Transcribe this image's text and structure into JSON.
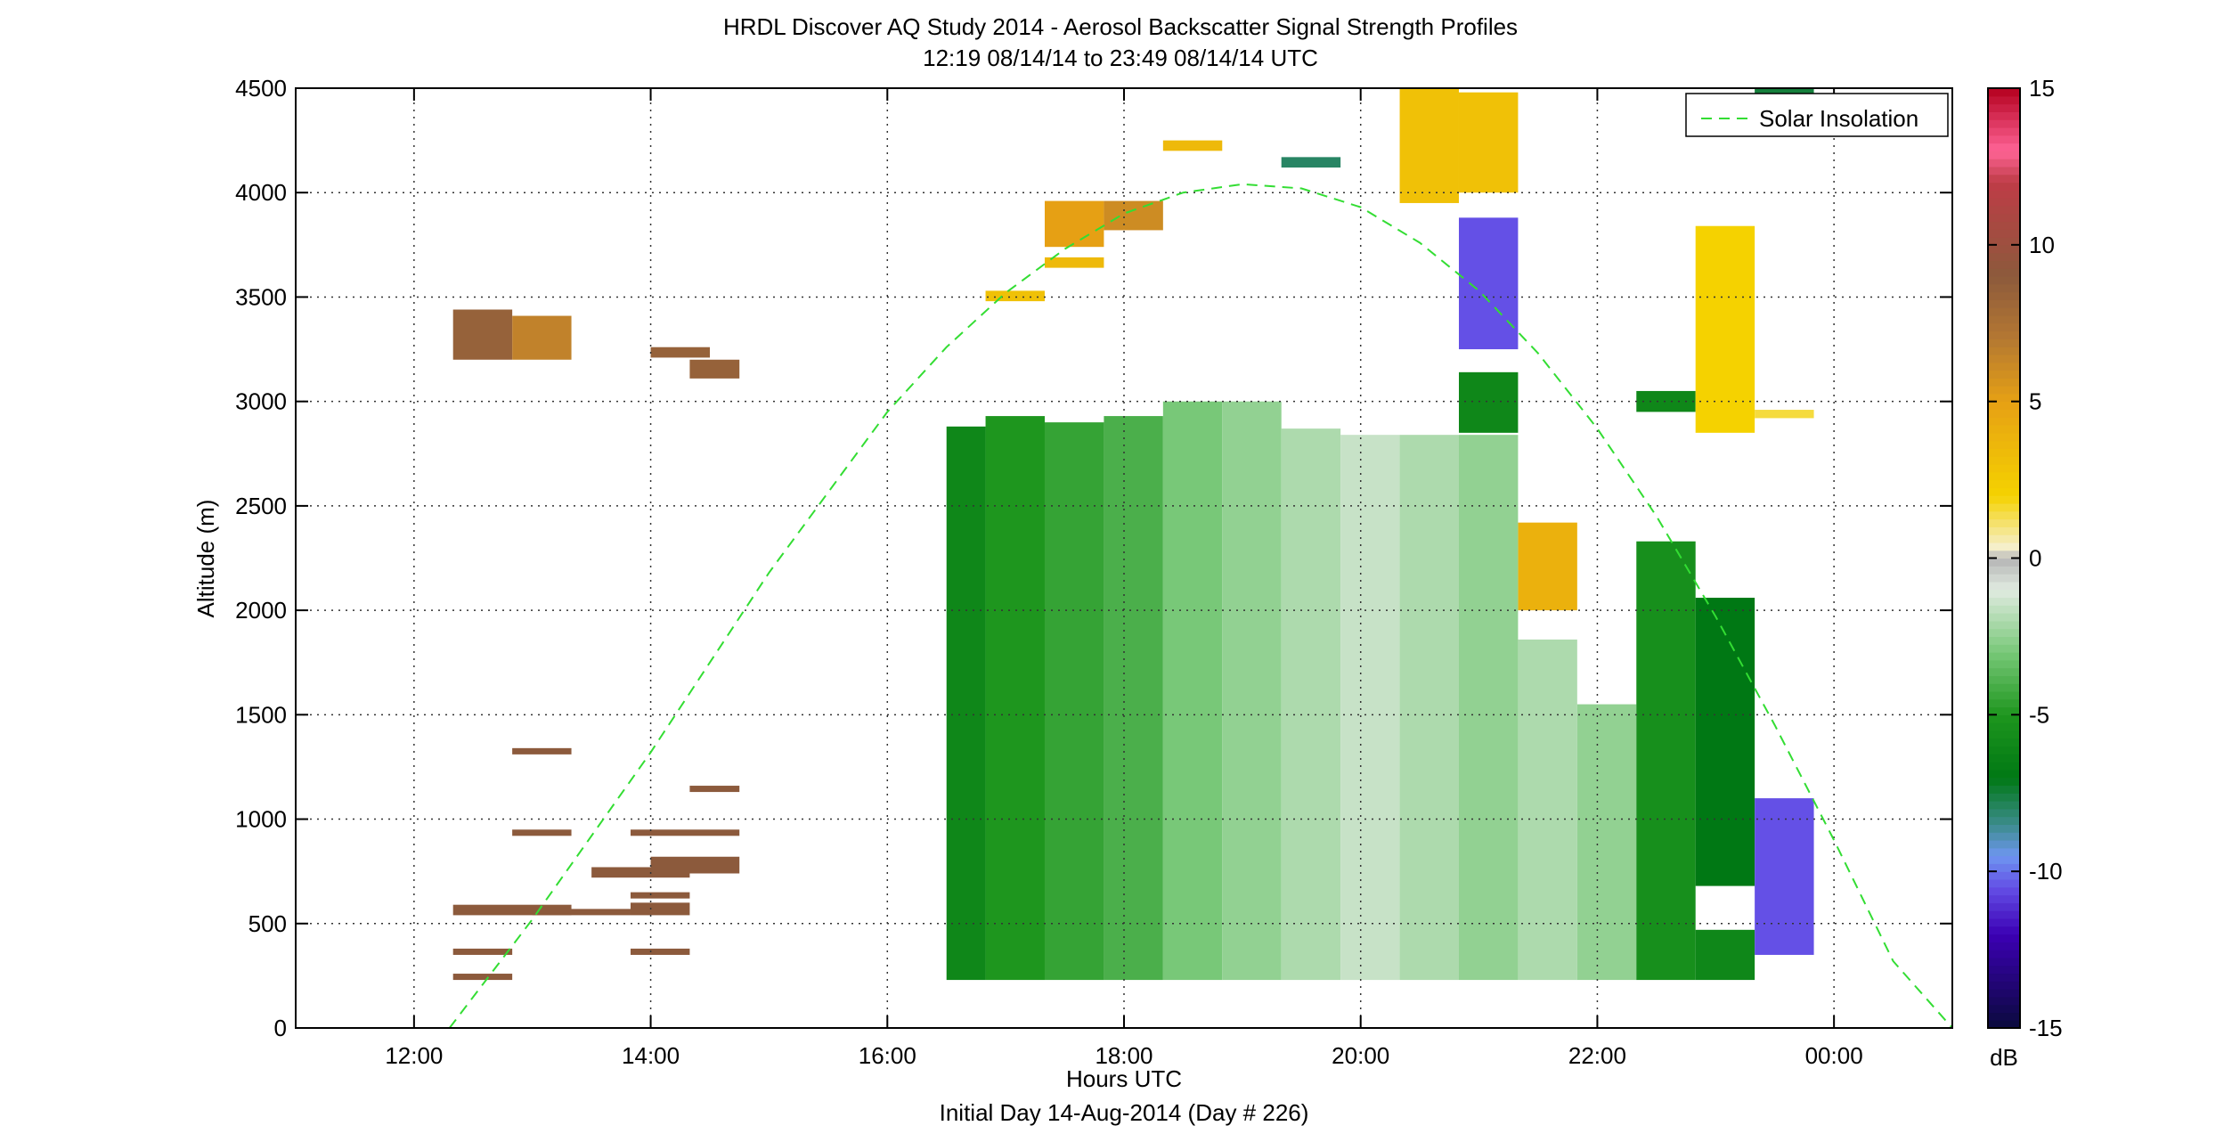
{
  "chart_data": {
    "type": "heatmap",
    "title": "HRDL Discover AQ Study 2014 - Aerosol Backscatter Signal Strength Profiles",
    "subtitle": "12:19 08/14/14 to 23:49 08/14/14  UTC",
    "xlabel": "Hours UTC",
    "xlabel2": "Initial Day 14-Aug-2014 (Day # 226)",
    "ylabel": "Altitude (m)",
    "xlim": [
      11.0,
      25.0
    ],
    "ylim": [
      0,
      4500
    ],
    "x_ticks": [
      {
        "value": 12,
        "label": "12:00"
      },
      {
        "value": 14,
        "label": "14:00"
      },
      {
        "value": 16,
        "label": "16:00"
      },
      {
        "value": 18,
        "label": "18:00"
      },
      {
        "value": 20,
        "label": "20:00"
      },
      {
        "value": 22,
        "label": "22:00"
      },
      {
        "value": 24,
        "label": "00:00"
      }
    ],
    "y_ticks": [
      {
        "value": 0,
        "label": "0"
      },
      {
        "value": 500,
        "label": "500"
      },
      {
        "value": 1000,
        "label": "1000"
      },
      {
        "value": 1500,
        "label": "1500"
      },
      {
        "value": 2000,
        "label": "2000"
      },
      {
        "value": 2500,
        "label": "2500"
      },
      {
        "value": 3000,
        "label": "3000"
      },
      {
        "value": 3500,
        "label": "3500"
      },
      {
        "value": 4000,
        "label": "4000"
      },
      {
        "value": 4500,
        "label": "4500"
      }
    ],
    "grid": true,
    "legend": {
      "position": "top-right",
      "entries": [
        {
          "label": "Solar Insolation",
          "style": "dashed",
          "color": "#33dd33"
        }
      ]
    },
    "colorbar": {
      "unit": "dB",
      "range": [
        -15,
        15
      ],
      "ticks": [
        {
          "value": 15,
          "label": "15"
        },
        {
          "value": 10,
          "label": "10"
        },
        {
          "value": 5,
          "label": "5"
        },
        {
          "value": 0,
          "label": "0"
        },
        {
          "value": -5,
          "label": "-5"
        },
        {
          "value": -10,
          "label": "-10"
        },
        {
          "value": -15,
          "label": "-15"
        }
      ]
    },
    "solar_insolation_curve": {
      "x": [
        12.3,
        13.0,
        14.0,
        15.0,
        16.0,
        16.5,
        17.0,
        17.5,
        18.0,
        18.5,
        19.0,
        19.5,
        20.0,
        20.5,
        21.0,
        21.5,
        22.0,
        22.5,
        23.0,
        23.5,
        24.0,
        24.5,
        25.0
      ],
      "y": [
        0,
        520,
        1320,
        2180,
        2950,
        3260,
        3520,
        3730,
        3900,
        4000,
        4040,
        4020,
        3930,
        3760,
        3530,
        3230,
        2870,
        2450,
        1970,
        1450,
        900,
        320,
        -280
      ]
    },
    "cells": [
      {
        "x0": 12.33,
        "x1": 12.83,
        "y0": 3200,
        "y1": 3440,
        "v": 8.5
      },
      {
        "x0": 12.83,
        "x1": 13.33,
        "y0": 3200,
        "y1": 3410,
        "v": 6.5
      },
      {
        "x0": 14.0,
        "x1": 14.5,
        "y0": 3210,
        "y1": 3260,
        "v": 8.5
      },
      {
        "x0": 14.33,
        "x1": 14.75,
        "y0": 3110,
        "y1": 3200,
        "v": 8.5
      },
      {
        "x0": 12.33,
        "x1": 13.33,
        "y0": 540,
        "y1": 590,
        "v": 9.0
      },
      {
        "x0": 13.0,
        "x1": 13.83,
        "y0": 540,
        "y1": 570,
        "v": 9.0
      },
      {
        "x0": 12.33,
        "x1": 12.83,
        "y0": 350,
        "y1": 380,
        "v": 9.0
      },
      {
        "x0": 12.33,
        "x1": 12.83,
        "y0": 230,
        "y1": 260,
        "v": 9.0
      },
      {
        "x0": 12.83,
        "x1": 13.33,
        "y0": 1310,
        "y1": 1340,
        "v": 9.0
      },
      {
        "x0": 12.83,
        "x1": 13.33,
        "y0": 920,
        "y1": 950,
        "v": 9.0
      },
      {
        "x0": 13.5,
        "x1": 14.33,
        "y0": 720,
        "y1": 770,
        "v": 9.0
      },
      {
        "x0": 14.0,
        "x1": 14.75,
        "y0": 740,
        "y1": 820,
        "v": 9.0
      },
      {
        "x0": 13.83,
        "x1": 14.33,
        "y0": 540,
        "y1": 600,
        "v": 9.0
      },
      {
        "x0": 13.83,
        "x1": 14.33,
        "y0": 620,
        "y1": 650,
        "v": 9.0
      },
      {
        "x0": 13.83,
        "x1": 14.75,
        "y0": 920,
        "y1": 950,
        "v": 9.0
      },
      {
        "x0": 13.83,
        "x1": 14.33,
        "y0": 350,
        "y1": 380,
        "v": 9.0
      },
      {
        "x0": 14.33,
        "x1": 14.75,
        "y0": 1130,
        "y1": 1160,
        "v": 9.0
      },
      {
        "x0": 16.83,
        "x1": 17.33,
        "y0": 3480,
        "y1": 3530,
        "v": 3.0
      },
      {
        "x0": 17.33,
        "x1": 17.83,
        "y0": 3640,
        "y1": 3690,
        "v": 3.5
      },
      {
        "x0": 17.33,
        "x1": 17.83,
        "y0": 3740,
        "y1": 3960,
        "v": 5.0
      },
      {
        "x0": 17.83,
        "x1": 18.33,
        "y0": 3820,
        "y1": 3960,
        "v": 6.0
      },
      {
        "x0": 18.33,
        "x1": 18.83,
        "y0": 4200,
        "y1": 4250,
        "v": 3.5
      },
      {
        "x0": 19.33,
        "x1": 19.83,
        "y0": 4120,
        "y1": 4170,
        "v": -8.0
      },
      {
        "x0": 20.33,
        "x1": 20.83,
        "y0": 3950,
        "y1": 4500,
        "v": 3.0
      },
      {
        "x0": 20.83,
        "x1": 21.33,
        "y0": 4000,
        "y1": 4480,
        "v": 3.0
      },
      {
        "x0": 20.83,
        "x1": 21.33,
        "y0": 3250,
        "y1": 3880,
        "v": -10.5
      },
      {
        "x0": 20.83,
        "x1": 21.33,
        "y0": 2850,
        "y1": 3140,
        "v": -6.0
      },
      {
        "x0": 21.33,
        "x1": 21.83,
        "y0": 2000,
        "y1": 2420,
        "v": 4.0
      },
      {
        "x0": 22.33,
        "x1": 22.83,
        "y0": 2950,
        "y1": 3050,
        "v": -6.0
      },
      {
        "x0": 22.83,
        "x1": 23.33,
        "y0": 2850,
        "y1": 3840,
        "v": 2.0
      },
      {
        "x0": 23.33,
        "x1": 23.83,
        "y0": 2920,
        "y1": 2960,
        "v": 1.5
      },
      {
        "x0": 23.33,
        "x1": 23.83,
        "y0": 4470,
        "y1": 4500,
        "v": -7.5
      },
      {
        "x0": 16.5,
        "x1": 16.83,
        "y0": 230,
        "y1": 2880,
        "v": -6.0
      },
      {
        "x0": 16.83,
        "x1": 17.33,
        "y0": 230,
        "y1": 2930,
        "v": -5.0
      },
      {
        "x0": 17.33,
        "x1": 17.83,
        "y0": 230,
        "y1": 2900,
        "v": -4.5
      },
      {
        "x0": 17.83,
        "x1": 18.33,
        "y0": 230,
        "y1": 2930,
        "v": -4.0
      },
      {
        "x0": 18.33,
        "x1": 18.83,
        "y0": 230,
        "y1": 3000,
        "v": -3.0
      },
      {
        "x0": 18.83,
        "x1": 19.33,
        "y0": 230,
        "y1": 3000,
        "v": -2.5
      },
      {
        "x0": 19.33,
        "x1": 19.83,
        "y0": 230,
        "y1": 2870,
        "v": -2.0
      },
      {
        "x0": 19.83,
        "x1": 20.33,
        "y0": 230,
        "y1": 2840,
        "v": -1.5
      },
      {
        "x0": 20.33,
        "x1": 20.83,
        "y0": 230,
        "y1": 2840,
        "v": -2.0
      },
      {
        "x0": 20.83,
        "x1": 21.33,
        "y0": 230,
        "y1": 2840,
        "v": -2.5
      },
      {
        "x0": 21.33,
        "x1": 21.83,
        "y0": 230,
        "y1": 1860,
        "v": -2.0
      },
      {
        "x0": 21.83,
        "x1": 22.33,
        "y0": 230,
        "y1": 1550,
        "v": -2.5
      },
      {
        "x0": 22.33,
        "x1": 22.83,
        "y0": 230,
        "y1": 2330,
        "v": -5.5
      },
      {
        "x0": 22.83,
        "x1": 23.33,
        "y0": 680,
        "y1": 2060,
        "v": -7.0
      },
      {
        "x0": 22.83,
        "x1": 23.33,
        "y0": 230,
        "y1": 470,
        "v": -6.0
      },
      {
        "x0": 23.33,
        "x1": 23.83,
        "y0": 350,
        "y1": 1100,
        "v": -10.5
      }
    ]
  },
  "colors": {
    "solar_curve": "#33dd33",
    "grid": "#333333",
    "missing": "#b0b0b0"
  }
}
